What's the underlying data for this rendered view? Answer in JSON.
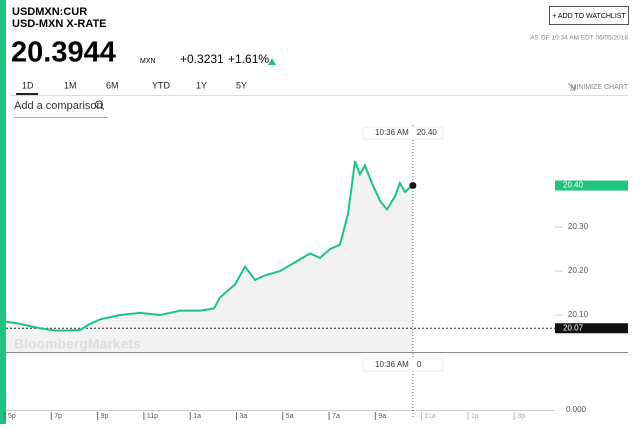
{
  "header": {
    "symbol": "USDMXN:CUR",
    "name": "USD-MXN X-RATE",
    "price": "20.3944",
    "currency": "MXN",
    "change": "+0.3231",
    "change_pct": "+1.61%",
    "button": "+ ADD TO WATCHLIST",
    "as_of": "AS OF 10:34 AM EDT 06/05/2018"
  },
  "tabs": [
    "1D",
    "1M",
    "6M",
    "YTD",
    "1Y",
    "5Y"
  ],
  "active_tab": 0,
  "minimize": "MINIMIZE CHART",
  "comparison_placeholder": "Add a comparison",
  "watermark": "BloombergMarkets",
  "chart_data": {
    "type": "line",
    "color": "#1ec47e",
    "x": [
      0.04,
      0.65,
      1.51,
      2.16,
      2.59,
      3.24,
      3.67,
      4.1,
      4.97,
      5.83,
      6.7,
      7.56,
      8.42,
      9.03,
      9.29,
      9.94,
      10.37,
      10.8,
      11.23,
      11.88,
      12.53,
      13.17,
      13.61,
      14.04,
      14.47,
      14.82,
      15.12,
      15.33,
      15.55,
      15.85,
      16.2,
      16.5,
      16.85,
      17.06,
      17.28,
      17.49,
      17.62
    ],
    "values": [
      20.085,
      20.08,
      20.07,
      20.065,
      20.065,
      20.066,
      20.08,
      20.09,
      20.1,
      20.105,
      20.1,
      20.11,
      20.11,
      20.115,
      20.14,
      20.17,
      20.21,
      20.18,
      20.19,
      20.2,
      20.22,
      20.24,
      20.23,
      20.25,
      20.26,
      20.33,
      20.45,
      20.42,
      20.44,
      20.4,
      20.36,
      20.34,
      20.37,
      20.4,
      20.38,
      20.39,
      20.3944
    ],
    "xlim": [
      0,
      23.76
    ],
    "ylim": [
      20.016,
      20.532
    ],
    "xticks": [
      {
        "value": 0,
        "label": "5p"
      },
      {
        "value": 2,
        "label": "7p"
      },
      {
        "value": 4,
        "label": "9p"
      },
      {
        "value": 6,
        "label": "11p"
      },
      {
        "value": 8,
        "label": "1a"
      },
      {
        "value": 10,
        "label": "3a"
      },
      {
        "value": 12,
        "label": "5a"
      },
      {
        "value": 14,
        "label": "7a"
      },
      {
        "value": 16,
        "label": "9a"
      },
      {
        "value": 18,
        "label": "11a"
      },
      {
        "value": 20,
        "label": "1p"
      },
      {
        "value": 22,
        "label": "3p"
      }
    ],
    "yticks": [
      {
        "value": 20.1,
        "label": "20.10"
      },
      {
        "value": 20.2,
        "label": "20.20"
      },
      {
        "value": 20.3,
        "label": "20.30"
      }
    ],
    "last_label": "20.40",
    "prev_close": {
      "value": 20.07,
      "label": "20.07"
    },
    "crosshair": {
      "time": "10:36 AM",
      "price": "20.40",
      "volume": "0"
    },
    "volume_tick": "0.000"
  }
}
